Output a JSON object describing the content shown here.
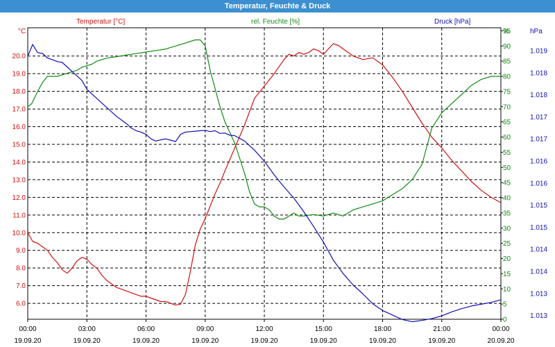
{
  "window": {
    "title": "Temperatur, Feuchte & Druck"
  },
  "colors": {
    "temperature": "#d01010",
    "humidity": "#118a11",
    "pressure": "#1010b0",
    "grid": "#000000",
    "titlebar": "#3c8fd0"
  },
  "chart_data": {
    "type": "line",
    "title": "Temperatur, Feuchte & Druck",
    "grid": true,
    "x_ticks": [
      {
        "t": "00:00",
        "d": "19.09.20"
      },
      {
        "t": "03:00",
        "d": "19.09.20"
      },
      {
        "t": "06:00",
        "d": "19.09.20"
      },
      {
        "t": "09:00",
        "d": "19.09.20"
      },
      {
        "t": "12:00",
        "d": "19.09.20"
      },
      {
        "t": "15:00",
        "d": "19.09.20"
      },
      {
        "t": "18:00",
        "d": "19.09.20"
      },
      {
        "t": "21:00",
        "d": "19.09.20"
      },
      {
        "t": "00:00",
        "d": "20.09.20"
      }
    ],
    "x_range_hours": [
      0,
      24
    ],
    "axes": {
      "temperature": {
        "label": "Temperatur [°C]",
        "unit": "°C",
        "range": [
          5.1,
          21.6
        ],
        "ticks": [
          "6.0",
          "7.0",
          "8.0",
          "9.0",
          "10.0",
          "11.0",
          "12.0",
          "13.0",
          "14.0",
          "15.0",
          "16.0",
          "17.0",
          "18.0",
          "19.0",
          "20.0"
        ]
      },
      "humidity": {
        "label": "rel. Feuchte [%]",
        "unit": "%",
        "range": [
          0,
          96
        ],
        "ticks": [
          "0",
          "5",
          "10",
          "15",
          "20",
          "25",
          "30",
          "35",
          "40",
          "45",
          "50",
          "55",
          "60",
          "65",
          "70",
          "75",
          "80",
          "85",
          "90",
          "95"
        ]
      },
      "pressure": {
        "label": "Druck [hPa]",
        "unit": "hPa",
        "ticks": [
          "1.013",
          "1.013",
          "1.014",
          "1.014",
          "1.015",
          "1.015",
          "1.016",
          "1.016",
          "1.017",
          "1.017",
          "1.018",
          "1.018",
          "1.019"
        ]
      }
    },
    "series": [
      {
        "name": "Temperatur [°C]",
        "axis": "temperature",
        "x": [
          0,
          0.25,
          0.5,
          0.75,
          1.0,
          1.25,
          1.5,
          1.75,
          2.0,
          2.25,
          2.5,
          2.75,
          3.0,
          3.25,
          3.5,
          3.75,
          4.0,
          4.25,
          4.5,
          4.75,
          5.0,
          5.25,
          5.5,
          5.75,
          6.0,
          6.25,
          6.5,
          6.75,
          7.0,
          7.25,
          7.5,
          7.75,
          8.0,
          8.25,
          8.5,
          8.75,
          9.0,
          9.25,
          9.5,
          9.75,
          10.0,
          10.5,
          11.0,
          11.5,
          12.0,
          12.5,
          13.0,
          13.25,
          13.5,
          13.75,
          14.0,
          14.25,
          14.5,
          14.75,
          15.0,
          15.25,
          15.5,
          15.75,
          16.0,
          16.25,
          16.5,
          17.0,
          17.5,
          18.0,
          18.5,
          19.0,
          19.5,
          20.0,
          20.5,
          21.0,
          21.5,
          22.0,
          22.5,
          23.0,
          23.5,
          24.0
        ],
        "values": [
          10.0,
          9.5,
          9.4,
          9.2,
          9.0,
          8.6,
          8.3,
          7.9,
          7.7,
          8.0,
          8.4,
          8.6,
          8.5,
          8.2,
          8.0,
          7.6,
          7.3,
          7.1,
          6.9,
          6.8,
          6.7,
          6.6,
          6.5,
          6.4,
          6.4,
          6.3,
          6.2,
          6.1,
          6.1,
          6.0,
          5.9,
          5.95,
          6.5,
          7.8,
          9.3,
          10.2,
          10.8,
          11.5,
          12.2,
          12.8,
          13.5,
          14.8,
          16.1,
          17.6,
          18.3,
          19.0,
          19.8,
          20.1,
          20.0,
          20.2,
          20.1,
          20.2,
          20.4,
          20.3,
          20.1,
          20.4,
          20.7,
          20.6,
          20.4,
          20.2,
          20.0,
          19.8,
          19.9,
          19.5,
          18.8,
          18.0,
          17.1,
          16.2,
          15.4,
          14.8,
          14.1,
          13.5,
          12.9,
          12.4,
          12.0,
          11.7
        ]
      },
      {
        "name": "rel. Feuchte [%]",
        "axis": "humidity",
        "x": [
          0,
          0.2,
          0.5,
          0.75,
          1.0,
          1.25,
          1.5,
          2.0,
          2.5,
          2.75,
          3.0,
          3.25,
          3.5,
          4.0,
          4.5,
          5.0,
          5.5,
          6.0,
          6.5,
          7.0,
          7.5,
          8.0,
          8.5,
          8.75,
          9.0,
          9.25,
          9.5,
          9.75,
          10.0,
          10.5,
          11.0,
          11.25,
          11.5,
          11.75,
          12.0,
          12.25,
          12.5,
          12.75,
          13.0,
          13.25,
          13.5,
          13.75,
          14.0,
          14.5,
          15.0,
          15.5,
          16.0,
          16.5,
          17.0,
          17.5,
          18.0,
          18.5,
          19.0,
          19.5,
          20.0,
          20.5,
          21.0,
          21.5,
          22.0,
          22.5,
          23.0,
          23.5,
          23.75,
          24.0
        ],
        "values": [
          70,
          71,
          75,
          78,
          80,
          80,
          80,
          81,
          82,
          83,
          83.5,
          84,
          85,
          86,
          86.5,
          87,
          87.5,
          88,
          88.5,
          89,
          90,
          91,
          92,
          92,
          90,
          82,
          76,
          70,
          65,
          58,
          48,
          42,
          38,
          37,
          37,
          36,
          34,
          33,
          33,
          34,
          35,
          34,
          34,
          34.5,
          34,
          35,
          34,
          36,
          37,
          38,
          39,
          41,
          43,
          46,
          51,
          63,
          68,
          71,
          74,
          77,
          79,
          80,
          80,
          80
        ]
      },
      {
        "name": "Druck [hPa]",
        "axis": "pressure",
        "x": [
          0,
          0.25,
          0.5,
          0.75,
          1.0,
          1.25,
          1.5,
          1.75,
          2.0,
          2.25,
          2.5,
          2.75,
          3.0,
          3.25,
          3.5,
          3.75,
          4.0,
          4.25,
          4.5,
          4.75,
          5.0,
          5.25,
          5.5,
          5.75,
          6.0,
          6.25,
          6.5,
          6.75,
          7.0,
          7.25,
          7.5,
          7.75,
          8.0,
          8.25,
          8.5,
          8.75,
          9.0,
          9.25,
          9.5,
          9.75,
          10.0,
          10.25,
          10.5,
          11.0,
          11.5,
          12.0,
          12.5,
          13.0,
          13.5,
          14.0,
          14.5,
          15.0,
          15.5,
          16.0,
          16.5,
          17.0,
          17.5,
          18.0,
          18.5,
          19.0,
          19.5,
          20.0,
          20.5,
          21.0,
          21.5,
          22.0,
          22.5,
          23.0,
          23.5,
          24.0
        ],
        "values": [
          1.01874,
          1.019,
          1.01882,
          1.0188,
          1.0187,
          1.01866,
          1.01862,
          1.0186,
          1.0185,
          1.0184,
          1.0183,
          1.0182,
          1.018,
          1.0179,
          1.0178,
          1.0177,
          1.0176,
          1.0175,
          1.0174,
          1.01732,
          1.01724,
          1.01714,
          1.01708,
          1.01705,
          1.017,
          1.0169,
          1.01685,
          1.01688,
          1.0169,
          1.01687,
          1.01684,
          1.017,
          1.01705,
          1.01706,
          1.01707,
          1.01708,
          1.01709,
          1.01706,
          1.01708,
          1.01702,
          1.01703,
          1.01698,
          1.01697,
          1.01685,
          1.01665,
          1.0164,
          1.0161,
          1.01583,
          1.01558,
          1.01528,
          1.01495,
          1.0146,
          1.0142,
          1.0139,
          1.01365,
          1.01345,
          1.01323,
          1.01308,
          1.01298,
          1.01288,
          1.01283,
          1.01286,
          1.0129,
          1.01296,
          1.01305,
          1.01312,
          1.01318,
          1.01322,
          1.01326,
          1.01332
        ]
      }
    ]
  }
}
